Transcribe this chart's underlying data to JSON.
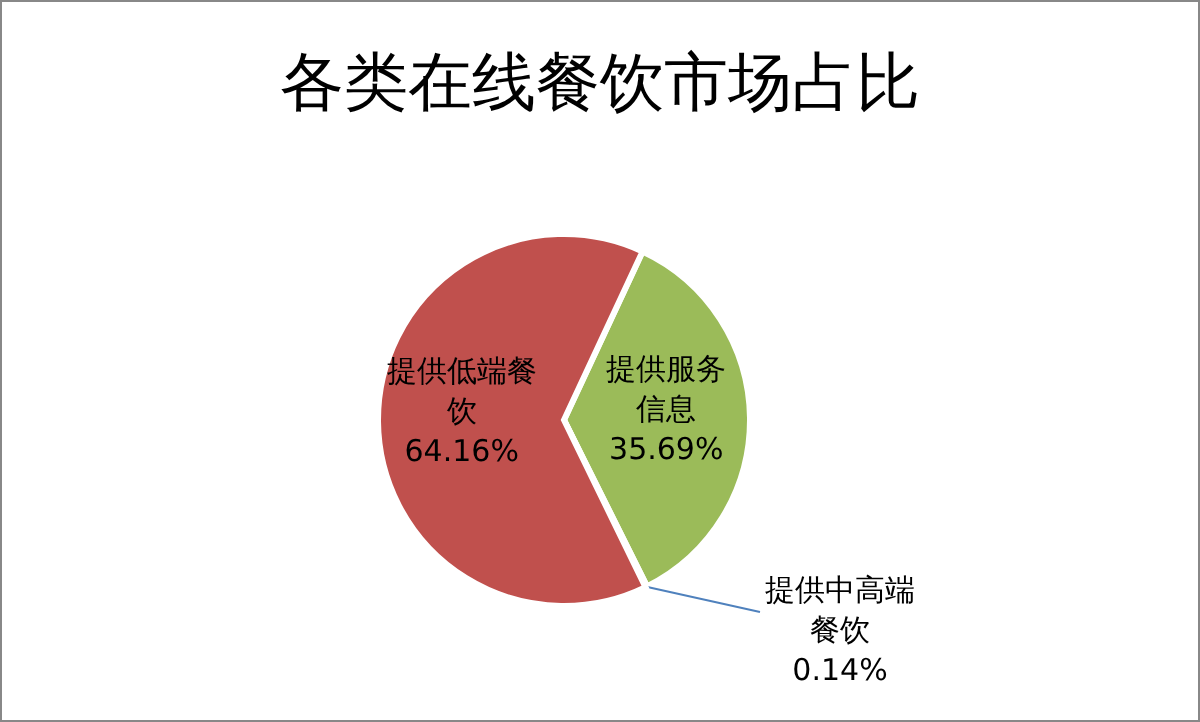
{
  "chart_data": {
    "type": "pie",
    "title": "各类在线餐饮市场占比",
    "categories": [
      "提供服务信息",
      "提供中高端餐饮",
      "提供低端餐饮"
    ],
    "values": [
      35.69,
      0.14,
      64.16
    ],
    "colors": [
      "#9bbb59",
      "#4f81bd",
      "#c0504d"
    ],
    "value_labels": [
      "35.69%",
      "0.14%",
      "64.16%"
    ]
  }
}
